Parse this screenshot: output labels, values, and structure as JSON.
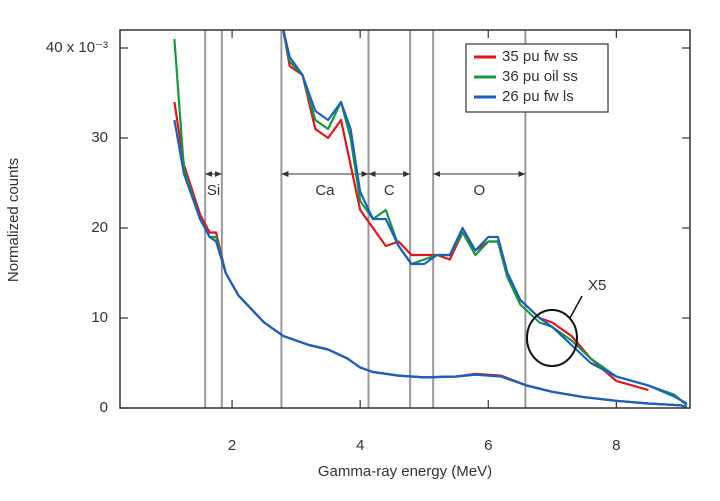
{
  "chart_data": {
    "type": "line",
    "xlabel": "Gamma-ray energy (MeV)",
    "ylabel": "Normalized counts",
    "xlim": [
      0.25,
      9.15
    ],
    "ylim": [
      0,
      42
    ],
    "xticks": [
      2,
      4,
      6,
      8
    ],
    "yticks": [
      0,
      10,
      20,
      30,
      {
        "value": 40,
        "label": "40 x 10⁻³"
      }
    ],
    "x": [
      1.1,
      1.25,
      1.5,
      1.65,
      1.75,
      1.9,
      2.1,
      2.5,
      2.8,
      3.2,
      3.5,
      3.8,
      4.0,
      4.2,
      4.6,
      5.0,
      5.5,
      5.8,
      6.2,
      6.6,
      7.0,
      7.5,
      8.0,
      8.5,
      9.0,
      9.1
    ],
    "x5_x": [
      2.8,
      2.9,
      3.1,
      3.3,
      3.5,
      3.7,
      3.85,
      4.0,
      4.2,
      4.4,
      4.6,
      4.8,
      5.0,
      5.2,
      5.4,
      5.6,
      5.8,
      6.0,
      6.15,
      6.3,
      6.5,
      6.8,
      7.0,
      7.3,
      7.6,
      8.0,
      8.5,
      8.9,
      9.1
    ],
    "series": [
      {
        "name": "35 pu fw ss",
        "color": "#e3141c",
        "values": [
          34,
          27,
          21.5,
          19.5,
          19.5,
          15,
          12.5,
          9.5,
          8,
          7,
          6.5,
          5.5,
          4.5,
          4,
          3.6,
          3.4,
          3.5,
          3.8,
          3.6,
          2.5,
          1.8,
          1.2,
          0.8,
          0.5,
          0.3,
          null
        ],
        "x5_values": [
          42,
          38,
          37,
          31,
          30,
          32,
          27,
          22,
          20,
          18,
          18.5,
          17,
          17,
          17,
          16.5,
          19.5,
          17.5,
          18.5,
          18.5,
          14.5,
          12,
          10,
          9.5,
          8,
          5.5,
          3,
          2,
          null,
          null
        ]
      },
      {
        "name": "36 pu oil ss",
        "color": "#129a3c",
        "values": [
          41,
          26.5,
          21,
          19,
          19,
          15,
          12.5,
          9.5,
          8,
          7,
          6.5,
          5.5,
          4.5,
          4,
          3.6,
          3.4,
          3.5,
          3.7,
          3.5,
          2.5,
          1.8,
          1.2,
          0.8,
          0.5,
          0.3,
          0.1
        ],
        "x5_values": [
          42,
          38.5,
          37,
          32,
          31,
          34,
          30,
          23,
          21,
          22,
          18,
          16,
          16.5,
          17,
          17,
          19.5,
          17,
          18.5,
          18.5,
          14.5,
          11.5,
          9.5,
          9,
          7.5,
          5.5,
          3.5,
          2.5,
          1.5,
          0.3
        ]
      },
      {
        "name": "26 pu fw ls",
        "color": "#1a5fc8",
        "values": [
          32,
          26,
          21,
          19,
          18.5,
          15,
          12.5,
          9.5,
          8,
          7,
          6.5,
          5.5,
          4.5,
          4,
          3.6,
          3.4,
          3.5,
          3.7,
          3.5,
          2.5,
          1.8,
          1.2,
          0.8,
          0.5,
          0.3,
          0.1
        ],
        "x5_values": [
          42,
          39,
          37,
          33,
          32,
          34,
          31,
          24,
          21,
          21,
          18,
          16,
          16,
          17,
          17,
          20,
          17.5,
          19,
          19,
          15,
          12,
          10,
          9,
          7,
          5,
          3.5,
          2.5,
          1.3,
          0.5
        ]
      }
    ],
    "vlines": [
      1.58,
      1.84,
      2.77,
      4.13,
      4.78,
      5.14,
      6.58
    ],
    "regions": [
      {
        "label": "Si",
        "from": 1.58,
        "to": 1.84,
        "y": 26
      },
      {
        "label": "Ca",
        "from": 2.77,
        "to": 4.13,
        "y": 26
      },
      {
        "label": "C",
        "from": 4.13,
        "to": 4.78,
        "y": 26
      },
      {
        "label": "O",
        "from": 5.14,
        "to": 6.58,
        "y": 26
      }
    ],
    "annotation": "X5",
    "legend": "upper right"
  }
}
